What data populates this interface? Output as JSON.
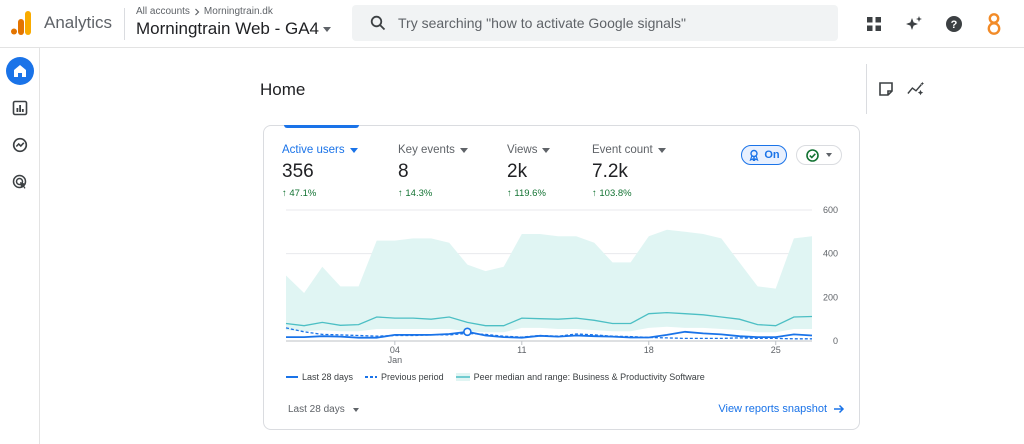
{
  "header": {
    "app_name": "Analytics",
    "breadcrumb_prefix": "All accounts",
    "breadcrumb_account": "Morningtrain.dk",
    "property_name": "Morningtrain Web - GA4",
    "search_placeholder": "Try searching \"how to activate Google signals\""
  },
  "top_icons": [
    "apps-grid-icon",
    "sparkle-icon",
    "help-icon",
    "account-icon"
  ],
  "colors": {
    "accent": "#1a73e8",
    "positive": "#137333",
    "band_fill": "#e0f5f3",
    "median_line": "#4cbfc4",
    "logo_orange": "#f9ab00",
    "logo_dark_orange": "#e37400",
    "account_orange": "#f28b28"
  },
  "left_nav": [
    "home-icon",
    "reports-icon",
    "explore-icon",
    "advertising-icon"
  ],
  "page": {
    "title": "Home"
  },
  "card": {
    "metrics": [
      {
        "name": "Active users",
        "value": "356",
        "change": "47.1%",
        "active": true
      },
      {
        "name": "Key events",
        "value": "8",
        "change": "14.3%",
        "active": false
      },
      {
        "name": "Views",
        "value": "2k",
        "change": "119.6%",
        "active": false
      },
      {
        "name": "Event count",
        "value": "7.2k",
        "change": "103.8%",
        "active": false
      }
    ],
    "benchmark_label": "On",
    "date_range": "Last 28 days",
    "view_link": "View reports snapshot"
  },
  "chart_data": {
    "type": "line",
    "x": [
      "Dec 29",
      "Dec 30",
      "Dec 31",
      "Jan 01",
      "Jan 02",
      "Jan 03",
      "Jan 04",
      "Jan 05",
      "Jan 06",
      "Jan 07",
      "Jan 08",
      "Jan 09",
      "Jan 10",
      "Jan 11",
      "Jan 12",
      "Jan 13",
      "Jan 14",
      "Jan 15",
      "Jan 16",
      "Jan 17",
      "Jan 18",
      "Jan 19",
      "Jan 20",
      "Jan 21",
      "Jan 22",
      "Jan 23",
      "Jan 24",
      "Jan 25",
      "Jan 26",
      "Jan 27"
    ],
    "x_ticks": [
      {
        "index": 6,
        "day": "04",
        "month": "Jan"
      },
      {
        "index": 13,
        "day": "11",
        "month": ""
      },
      {
        "index": 20,
        "day": "18",
        "month": ""
      },
      {
        "index": 27,
        "day": "25",
        "month": ""
      }
    ],
    "y_ticks": [
      "600",
      "400",
      "200",
      "0"
    ],
    "ylim": [
      0,
      600
    ],
    "series": [
      {
        "name": "Last 28 days",
        "style": "solid",
        "values": [
          18,
          18,
          22,
          20,
          15,
          15,
          28,
          28,
          28,
          32,
          42,
          25,
          18,
          15,
          24,
          20,
          25,
          22,
          20,
          16,
          16,
          28,
          42,
          35,
          30,
          22,
          18,
          18,
          30,
          25
        ]
      },
      {
        "name": "Previous period",
        "style": "dashed",
        "values": [
          60,
          42,
          30,
          28,
          25,
          22,
          25,
          25,
          28,
          28,
          35,
          30,
          22,
          18,
          25,
          22,
          32,
          28,
          22,
          20,
          16,
          14,
          12,
          12,
          12,
          14,
          12,
          12,
          10,
          10
        ]
      },
      {
        "name": "Peer median and range: Business & Productivity Software",
        "style": "median",
        "values": [
          80,
          70,
          85,
          72,
          75,
          110,
          105,
          105,
          100,
          110,
          85,
          70,
          70,
          105,
          102,
          100,
          105,
          95,
          80,
          80,
          125,
          130,
          125,
          120,
          110,
          100,
          75,
          70,
          110,
          112
        ]
      }
    ],
    "band": {
      "lower": [
        50,
        45,
        50,
        45,
        45,
        55,
        55,
        55,
        55,
        55,
        45,
        40,
        40,
        60,
        60,
        55,
        55,
        50,
        45,
        45,
        60,
        65,
        60,
        60,
        55,
        50,
        40,
        40,
        55,
        55
      ],
      "upper": [
        300,
        220,
        340,
        250,
        250,
        460,
        460,
        470,
        470,
        450,
        350,
        320,
        340,
        490,
        490,
        480,
        480,
        450,
        360,
        360,
        480,
        510,
        500,
        490,
        470,
        360,
        250,
        240,
        470,
        480
      ]
    }
  }
}
